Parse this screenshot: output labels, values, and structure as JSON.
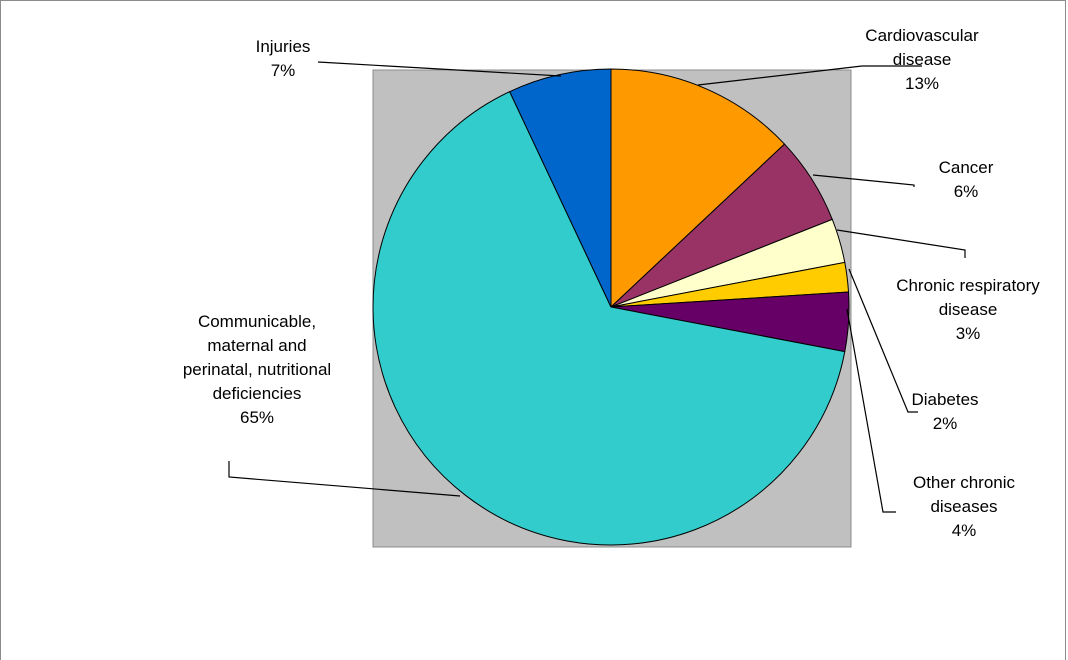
{
  "chart_data": {
    "type": "pie",
    "title": "",
    "colors": {
      "plot_area": "#c0c0c0",
      "slice_border": "#000000",
      "leader_line": "#000000"
    },
    "slices": [
      {
        "name": "Cardiovascular disease",
        "label_lines": [
          "Cardiovascular",
          "disease"
        ],
        "percent_label": "13%",
        "value": 13,
        "color": "#ff9900"
      },
      {
        "name": "Cancer",
        "label_lines": [
          "Cancer"
        ],
        "percent_label": "6%",
        "value": 6,
        "color": "#993366"
      },
      {
        "name": "Chronic respiratory disease",
        "label_lines": [
          "Chronic respiratory",
          "disease"
        ],
        "percent_label": "3%",
        "value": 3,
        "color": "#ffffcc"
      },
      {
        "name": "Diabetes",
        "label_lines": [
          "Diabetes"
        ],
        "percent_label": "2%",
        "value": 2,
        "color": "#ffcc00"
      },
      {
        "name": "Other chronic diseases",
        "label_lines": [
          "Other chronic",
          "diseases"
        ],
        "percent_label": "4%",
        "value": 4,
        "color": "#660066"
      },
      {
        "name": "Communicable, maternal and perinatal, nutritional deficiencies",
        "label_lines": [
          "Communicable,",
          "maternal and",
          "perinatal, nutritional",
          "deficiencies"
        ],
        "percent_label": "65%",
        "value": 65,
        "color": "#33cccc"
      },
      {
        "name": "Injuries",
        "label_lines": [
          "Injuries"
        ],
        "percent_label": "7%",
        "value": 7,
        "color": "#0066cc"
      }
    ]
  }
}
